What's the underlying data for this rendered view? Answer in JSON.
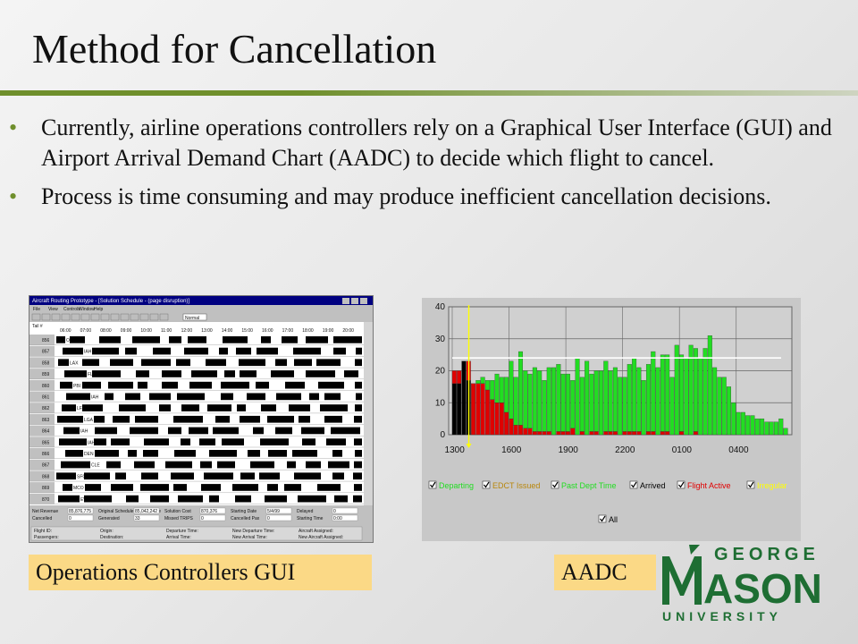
{
  "slide": {
    "title": "Method for Cancellation",
    "bullets": [
      "Currently, airline operations controllers rely on a Graphical User Interface (GUI) and Airport Arrival Demand Chart (AADC) to decide which flight to cancel.",
      "Process is time consuming and may produce inefficient cancellation decisions."
    ],
    "captions": {
      "gui": "Operations Controllers GUI",
      "aadc": "AADC"
    },
    "accent": "#6f8f2c",
    "caption_bg": "#fbd986"
  },
  "gui_window": {
    "title": "Aircraft Routing Prototype - [Solution Schedule - (page disruption)]",
    "menu": [
      "File",
      "View",
      "Controls",
      "Window",
      "Help"
    ],
    "zoom": "Normal",
    "row_header": "Tail #",
    "times": [
      "06:00",
      "07:00",
      "08:00",
      "09:00",
      "10:00",
      "11:00",
      "12:00",
      "13:00",
      "14:00",
      "15:00",
      "16:00",
      "17:00",
      "18:00",
      "19:00",
      "20:00"
    ],
    "tails": [
      "856",
      "857",
      "858",
      "859",
      "860",
      "861",
      "862",
      "863",
      "864",
      "865",
      "866",
      "867",
      "868",
      "869",
      "870"
    ],
    "airports": [
      "ORD",
      "IAH",
      "LAX",
      "FLL",
      "PBI",
      "IAH",
      "LFT",
      "LGA",
      "IAH",
      "IAH",
      "DEN",
      "CLE",
      "SFO",
      "MCO",
      "EWR"
    ],
    "status_labels": [
      "Net Revenue",
      "Original Schedule Net Revenue",
      "Solution Cost",
      "Starting Date",
      "Delayed",
      "Cancelled",
      "Generated",
      "Missed TRIPS",
      "Cancelled Pax",
      "Starting Time"
    ],
    "status_values": [
      "85,876,775",
      "85,042,242",
      "870,376",
      "5/4/99",
      "0",
      "0",
      "33",
      "0",
      "0",
      "0:00"
    ],
    "footer_labels": [
      "Flight ID:",
      "Origin:",
      "Departure Time:",
      "New Departure Time:",
      "Aircraft Assigned:",
      "Passengers:",
      "Destination:",
      "Arrival Time:",
      "New Arrival Time:",
      "New Aircraft Assigned:"
    ]
  },
  "chart_data": {
    "type": "bar",
    "title": "",
    "xlabel": "",
    "ylabel": "",
    "ylim": [
      0,
      40
    ],
    "yticks": [
      0,
      10,
      20,
      30,
      40
    ],
    "xticks": [
      "1300",
      "1600",
      "1900",
      "2200",
      "0100",
      "0400"
    ],
    "reference_line": 24,
    "current_time_index": 3,
    "legend": [
      "Departing",
      "EDCT Issued",
      "Past Dept Time",
      "Arrived",
      "Flight Active",
      "Irregular",
      "All"
    ],
    "colors": {
      "Arrived": "#000000",
      "Flight Active": "#e00000",
      "Past Dept Time": "#22dd22",
      "Departing": "#22dd22",
      "EDCT Issued": "#b8860b",
      "Irregular": "#ffff00",
      "reference": "#ffffff"
    },
    "series": [
      {
        "name": "Arrived",
        "values": [
          16,
          16,
          23,
          17,
          0,
          0,
          0,
          0,
          0,
          0,
          0,
          0,
          0,
          0,
          0,
          0,
          0,
          0,
          0,
          0,
          0,
          0,
          0,
          0,
          0,
          0,
          0,
          0,
          0,
          0,
          0,
          0,
          0,
          0,
          0,
          0,
          0,
          0,
          0,
          0,
          0,
          0,
          0,
          0,
          0,
          0,
          0,
          0,
          0,
          0,
          0,
          0,
          0,
          0,
          0,
          0,
          0,
          0,
          0,
          0,
          0,
          0,
          0,
          0,
          0,
          0,
          0,
          0,
          0,
          0,
          0
        ]
      },
      {
        "name": "Flight Active",
        "values": [
          4,
          4,
          0,
          6,
          16,
          16,
          16,
          14,
          11,
          10,
          10,
          7,
          5,
          3,
          3,
          2,
          2,
          1,
          1,
          1,
          1,
          0,
          1,
          1,
          1,
          2,
          0,
          1,
          0,
          1,
          1,
          0,
          1,
          1,
          1,
          0,
          1,
          1,
          1,
          1,
          0,
          1,
          1,
          0,
          1,
          1,
          0,
          0,
          1,
          0,
          0,
          1,
          0,
          0,
          0,
          0,
          0,
          0,
          0,
          0,
          0,
          0,
          0,
          0,
          0,
          0,
          0,
          0,
          0,
          0,
          0
        ]
      },
      {
        "name": "Past Dept Time",
        "values": [
          0,
          0,
          0,
          0,
          0,
          1,
          2,
          3,
          6,
          9,
          8,
          11,
          18,
          15,
          23,
          18,
          17,
          20,
          19,
          16,
          20,
          21,
          21,
          18,
          18,
          15,
          24,
          17,
          23,
          18,
          19,
          20,
          22,
          19,
          20,
          18,
          17,
          21,
          23,
          20,
          17,
          21,
          25,
          21,
          24,
          24,
          18,
          28,
          24,
          24,
          28,
          26,
          24,
          27,
          31,
          21,
          18,
          18,
          15,
          10,
          7,
          7,
          6,
          6,
          5,
          5,
          4,
          4,
          4,
          5,
          2
        ]
      }
    ]
  },
  "logo": {
    "top": "GEORGE",
    "main": "ÁSON",
    "initial": "M",
    "bottom": "U N I V E R S I T Y",
    "color": "#1e6e33",
    "accent_color": "#e3b51b"
  }
}
